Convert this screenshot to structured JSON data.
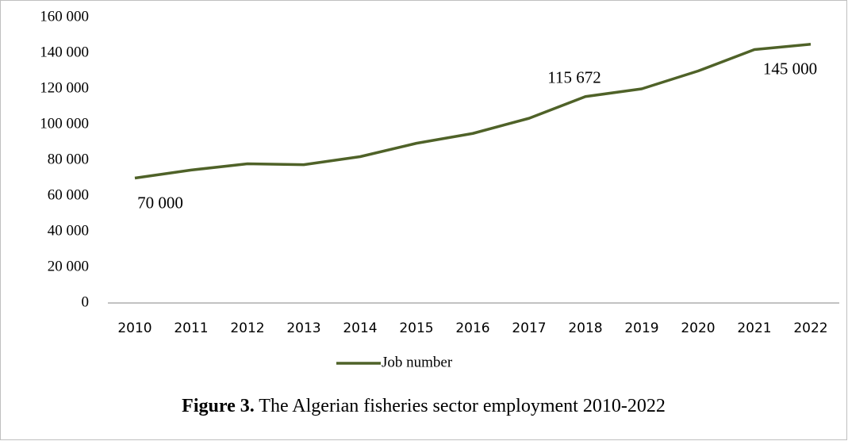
{
  "chart_data": {
    "type": "line",
    "categories": [
      "2010",
      "2011",
      "2012",
      "2013",
      "2014",
      "2015",
      "2016",
      "2017",
      "2018",
      "2019",
      "2020",
      "2021",
      "2022"
    ],
    "series": [
      {
        "name": "Job number",
        "color": "#4f6228",
        "values": [
          70000,
          74500,
          78000,
          77500,
          82000,
          89500,
          95000,
          103500,
          115672,
          120000,
          130000,
          142000,
          145000
        ],
        "value_labels": [
          "70 000",
          null,
          null,
          null,
          null,
          null,
          null,
          null,
          "115 672",
          null,
          null,
          null,
          "145 000"
        ]
      }
    ],
    "ylim": [
      0,
      160000
    ],
    "yticks": [
      0,
      {
        "value": 20000,
        "label": "20 000"
      },
      {
        "value": 40000,
        "label": "40 000"
      },
      {
        "value": 60000,
        "label": "60 000"
      },
      {
        "value": 80000,
        "label": "80 000"
      },
      {
        "value": 100000,
        "label": "100 000"
      },
      {
        "value": 120000,
        "label": "120 000"
      },
      {
        "value": 140000,
        "label": "140 000"
      },
      {
        "value": 160000,
        "label": "160 000"
      }
    ],
    "legend": "bottom",
    "caption_label": "Figure 3.",
    "caption": "The Algerian fisheries sector employment 2010-2022"
  }
}
